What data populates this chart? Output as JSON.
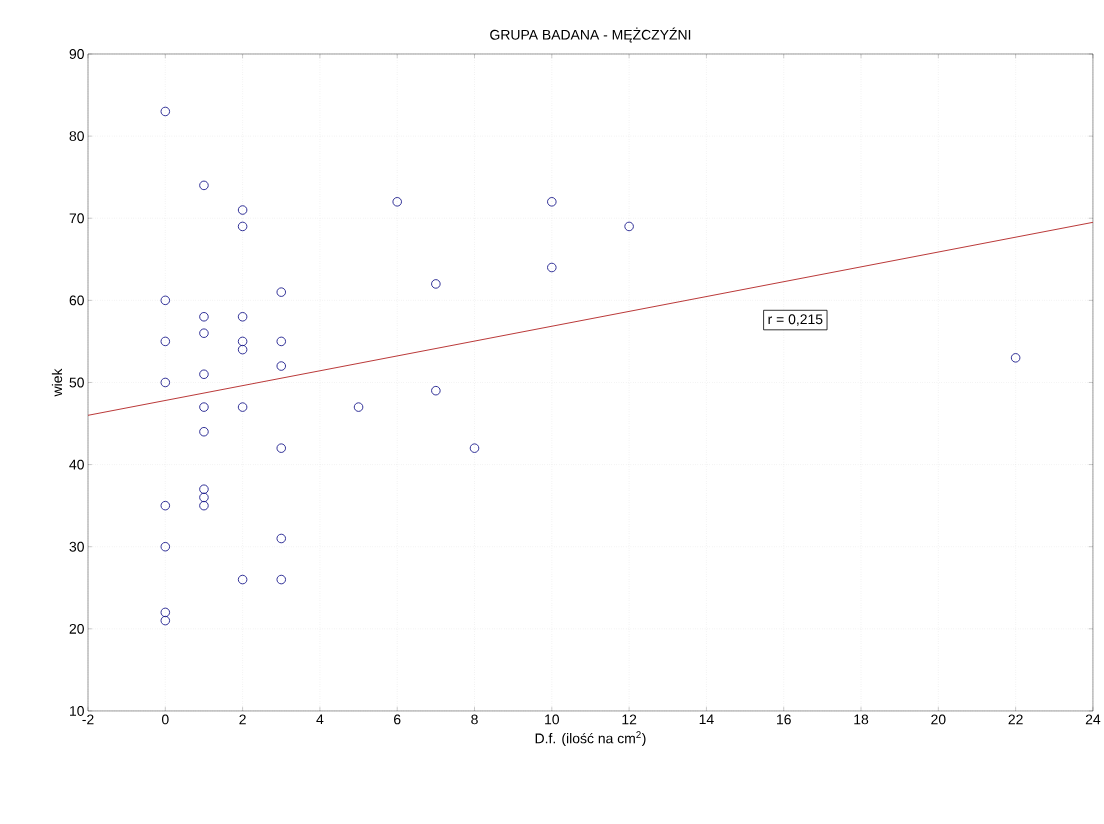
{
  "chart_data": {
    "type": "scatter",
    "title": "GRUPA BADANA - MĘŻCZYŹNI",
    "xlabel": "D.f. (ilość na cm$^{2}$)",
    "ylabel": "wiek",
    "series": [
      {
        "type": "scatter",
        "color": "#1c1c8c",
        "marker": "circle",
        "x": [
          0,
          0,
          0,
          0,
          0,
          0,
          0,
          0,
          1,
          1,
          1,
          1,
          1,
          1,
          1,
          1,
          1,
          2,
          2,
          2,
          2,
          2,
          2,
          2,
          3,
          3,
          3,
          3,
          3,
          3,
          5,
          6,
          7,
          7,
          8,
          10,
          10,
          12,
          22
        ],
        "values": [
          83,
          60,
          55,
          50,
          35,
          30,
          22,
          21,
          74,
          58,
          56,
          51,
          47,
          44,
          37,
          36,
          35,
          71,
          69,
          58,
          55,
          54,
          47,
          26,
          61,
          55,
          52,
          42,
          31,
          26,
          47,
          72,
          62,
          49,
          42,
          72,
          64,
          69,
          53
        ]
      },
      {
        "type": "line",
        "color": "#b22222",
        "marker": "none",
        "line_style": "solid",
        "x": [
          -2,
          24
        ],
        "values": [
          46,
          69.5
        ]
      }
    ],
    "annotations": [
      "r = 0,215"
    ],
    "xlim": [
      -2,
      24
    ],
    "ylim": [
      10,
      90
    ],
    "xticks": [
      -2,
      0,
      2,
      4,
      6,
      8,
      10,
      12,
      14,
      16,
      18,
      20,
      22,
      24
    ],
    "yticks": [
      10,
      20,
      30,
      40,
      50,
      60,
      70,
      80,
      90
    ],
    "grid": true
  }
}
